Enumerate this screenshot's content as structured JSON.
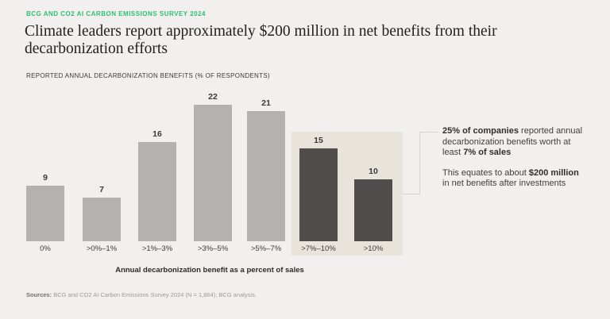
{
  "header": {
    "kicker": "BCG AND CO2 AI CARBON EMISSIONS SURVEY 2024",
    "title": "Climate leaders report approximately $200 million in net benefits from their decarbonization efforts",
    "subtitle": "REPORTED ANNUAL DECARBONIZATION BENEFITS (% OF RESPONDENTS)"
  },
  "chart_data": {
    "type": "bar",
    "title": "Reported annual decarbonization benefits (% of respondents)",
    "categories": [
      "0%",
      ">0%–1%",
      ">1%–3%",
      ">3%–5%",
      ">5%–7%",
      ">7%–10%",
      ">10%"
    ],
    "values": [
      9,
      7,
      16,
      22,
      21,
      15,
      10
    ],
    "highlighted_categories": [
      ">7%–10%",
      ">10%"
    ],
    "data_labels": true,
    "xlabel": "Annual decarbonization benefit as a percent of sales",
    "ylabel": "% of respondents",
    "ylim": [
      0,
      24
    ],
    "grid": false,
    "legend": false,
    "colors": {
      "bar": "#b3b2b1",
      "highlight_bar": "#4f4e4d",
      "highlight_box": "#e9e4db",
      "connector_line": "#d9d3c8"
    }
  },
  "annotation": {
    "p1": [
      {
        "text": "25% of companies",
        "bold": true
      },
      {
        "text": " reported annual decarbonization benefits worth at least ",
        "bold": false
      },
      {
        "text": "7% of sales",
        "bold": true
      }
    ],
    "p2": [
      {
        "text": "This equates to about ",
        "bold": false
      },
      {
        "text": "$200 million",
        "bold": true
      },
      {
        "text": " in net benefits after investments",
        "bold": false
      }
    ]
  },
  "footer": {
    "sources_label": "Sources:",
    "sources_text": " BCG and CO2 AI Carbon Emissions Survey 2024 (N = 1,864); BCG analysis."
  },
  "colors": {
    "background": "#f1f0ef",
    "kicker_green": "#2fbe71",
    "title_text": "#212121",
    "body_text": "#3f3f3f"
  }
}
